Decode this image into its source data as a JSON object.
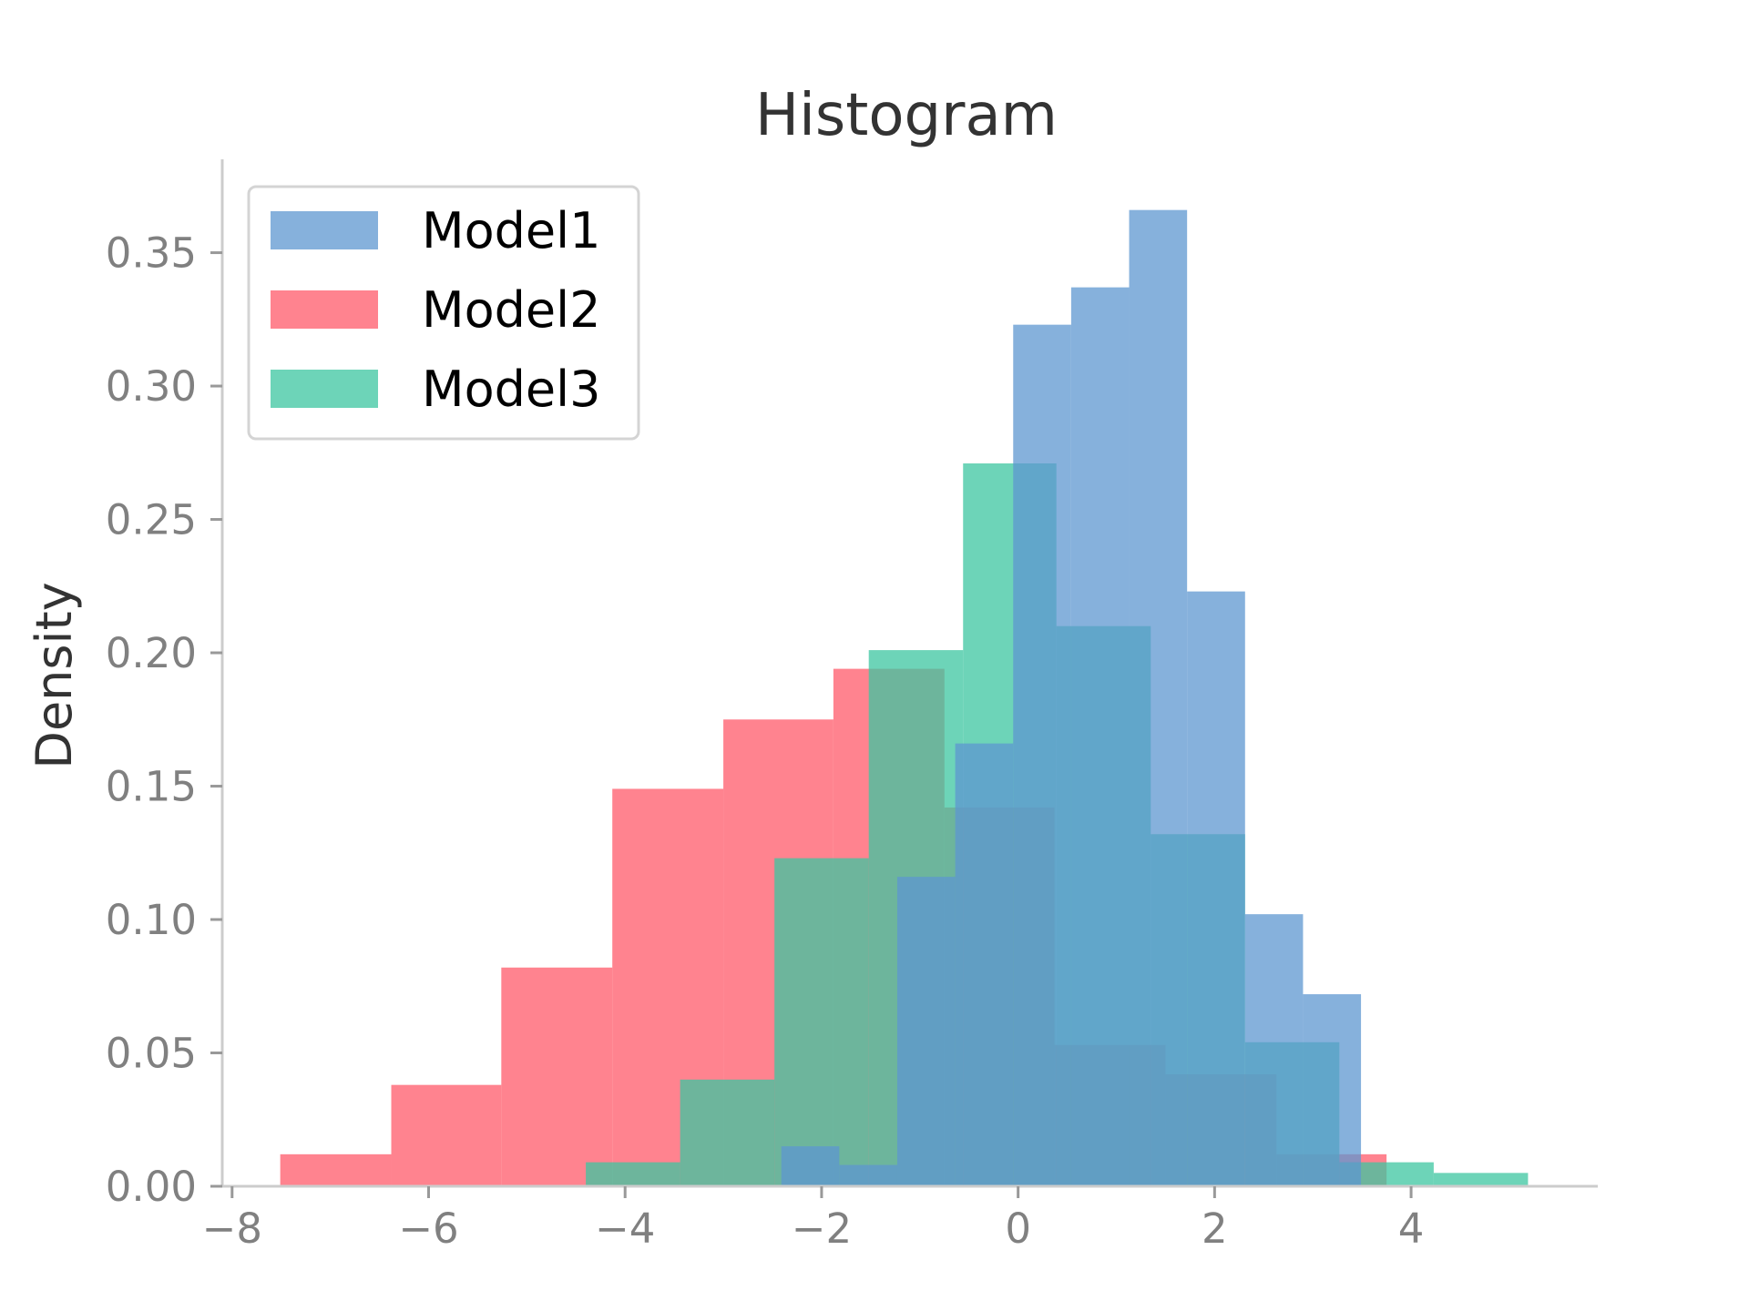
{
  "chart_data": {
    "type": "bar",
    "subtype": "histogram",
    "title": "Histogram",
    "xlabel": "",
    "ylabel": "Density",
    "xlim": [
      -8.1,
      5.9
    ],
    "ylim": [
      0,
      0.385
    ],
    "x_ticks": [
      -8,
      -6,
      -4,
      -2,
      0,
      2,
      4
    ],
    "x_tick_labels": [
      "−8",
      "−6",
      "−4",
      "−2",
      "0",
      "2",
      "4"
    ],
    "y_ticks": [
      0.0,
      0.05,
      0.1,
      0.15,
      0.2,
      0.25,
      0.3,
      0.35
    ],
    "y_tick_labels": [
      "0.00",
      "0.05",
      "0.10",
      "0.15",
      "0.20",
      "0.25",
      "0.30",
      "0.35"
    ],
    "grid": false,
    "legend_position": "top-left",
    "opacity": 0.75,
    "series": [
      {
        "name": "Model2",
        "color": "#FF5A6A",
        "bin_edges": [
          -7.51,
          -6.38,
          -5.26,
          -4.13,
          -3.0,
          -1.88,
          -0.75,
          0.37,
          1.5,
          2.63,
          3.75
        ],
        "values": [
          0.012,
          0.038,
          0.082,
          0.149,
          0.175,
          0.194,
          0.142,
          0.053,
          0.042,
          0.012
        ]
      },
      {
        "name": "Model3",
        "color": "#3CC5A0",
        "bin_edges": [
          -4.4,
          -3.44,
          -2.48,
          -1.52,
          -0.56,
          0.39,
          1.35,
          2.31,
          3.27,
          4.23,
          5.19
        ],
        "values": [
          0.009,
          0.04,
          0.123,
          0.201,
          0.271,
          0.21,
          0.132,
          0.054,
          0.009,
          0.005
        ]
      },
      {
        "name": "Model1",
        "color": "#5E97D0",
        "bin_edges": [
          -2.41,
          -1.82,
          -1.23,
          -0.64,
          -0.05,
          0.54,
          1.13,
          1.72,
          2.31,
          2.9,
          3.49
        ],
        "values": [
          0.015,
          0.008,
          0.116,
          0.166,
          0.323,
          0.337,
          0.366,
          0.223,
          0.102,
          0.072
        ]
      }
    ]
  }
}
